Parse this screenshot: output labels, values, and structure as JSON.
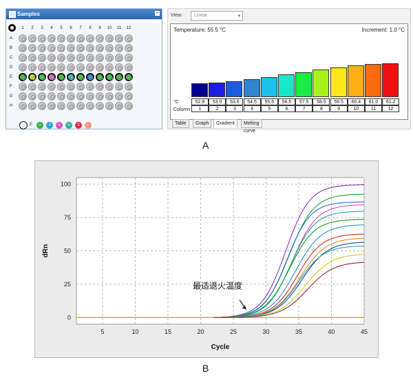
{
  "samples_panel": {
    "title": "Samples",
    "collapse_glyph": "−",
    "columns": [
      "1",
      "2",
      "3",
      "4",
      "5",
      "6",
      "7",
      "8",
      "9",
      "10",
      "11",
      "12"
    ],
    "rows": [
      "A",
      "B",
      "C",
      "D",
      "E",
      "F",
      "G",
      "H"
    ],
    "active_row": "E",
    "active_row_well_colors": [
      "#46c640",
      "#cfe02c",
      "#46c640",
      "#e86cc8",
      "#46c640",
      "#3ac3b0",
      "#46c640",
      "#3d8de0",
      "#46c640",
      "#46c640",
      "#46c640",
      "#46c640"
    ],
    "legend": {
      "label": "E",
      "dots": [
        {
          "glyph": "U",
          "color": "#2bb24c"
        },
        {
          "glyph": "S",
          "color": "#1ea7e1"
        },
        {
          "glyph": "S",
          "color": "#d94fc0"
        },
        {
          "glyph": "N",
          "color": "#2fae9f"
        },
        {
          "glyph": "S",
          "color": "#e02a43"
        },
        {
          "glyph": "-",
          "color": "#f29a7b"
        }
      ]
    }
  },
  "gradient_panel": {
    "view_label": "View:",
    "view_value": "Linear",
    "temperature_text": "Temperature: 55.5 °C",
    "increment_text": "Increment: 1.0 °C",
    "row_label_temp": "°C",
    "row_label_col": "Column",
    "bars": [
      {
        "column": "1",
        "temp": "52.8",
        "value": 52.8,
        "color": "#00008f"
      },
      {
        "column": "2",
        "temp": "53.0",
        "value": 53.0,
        "color": "#1a1ee0"
      },
      {
        "column": "3",
        "temp": "53.6",
        "value": 53.6,
        "color": "#1e5ae8"
      },
      {
        "column": "4",
        "temp": "54.5",
        "value": 54.5,
        "color": "#2f84cc"
      },
      {
        "column": "5",
        "temp": "55.5",
        "value": 55.5,
        "color": "#1cc2ec"
      },
      {
        "column": "6",
        "temp": "56.5",
        "value": 56.5,
        "color": "#17e7c9"
      },
      {
        "column": "7",
        "temp": "57.5",
        "value": 57.5,
        "color": "#19ee45"
      },
      {
        "column": "8",
        "temp": "58.5",
        "value": 58.5,
        "color": "#a6f21a"
      },
      {
        "column": "9",
        "temp": "59.5",
        "value": 59.5,
        "color": "#ffe617"
      },
      {
        "column": "10",
        "temp": "60.4",
        "value": 60.4,
        "color": "#ffae13"
      },
      {
        "column": "11",
        "temp": "61.0",
        "value": 61.0,
        "color": "#ff6a0f"
      },
      {
        "column": "12",
        "temp": "61.2",
        "value": 61.2,
        "color": "#f01010"
      }
    ],
    "tabs": [
      "Table",
      "Graph",
      "Gradient",
      "Melting curve"
    ],
    "active_tab": "Gradient"
  },
  "captions": {
    "a": "A",
    "b": "B"
  },
  "chart_data": {
    "type": "line",
    "xlabel": "Cycle",
    "ylabel": "dRn",
    "xlim": [
      1,
      45
    ],
    "ylim": [
      -5,
      105
    ],
    "x_ticks": [
      5,
      10,
      15,
      20,
      25,
      30,
      35,
      40,
      45
    ],
    "y_ticks": [
      0,
      25,
      50,
      75,
      100
    ],
    "grid": true,
    "annotation": {
      "text": "最适退火温度",
      "arrow_to_x": 27.0,
      "arrow_to_y": 6
    },
    "series": [
      {
        "color": "#8b2fc9",
        "max": 100,
        "mid": 33.0,
        "k": 0.34
      },
      {
        "color": "#1a9e3a",
        "max": 93,
        "mid": 33.5,
        "k": 0.33
      },
      {
        "color": "#2d6fd1",
        "max": 87,
        "mid": 33.2,
        "k": 0.35
      },
      {
        "color": "#e04ac0",
        "max": 85,
        "mid": 34.0,
        "k": 0.33
      },
      {
        "color": "#13a8a8",
        "max": 80,
        "mid": 33.8,
        "k": 0.34
      },
      {
        "color": "#1a9e1a",
        "max": 74,
        "mid": 33.6,
        "k": 0.33
      },
      {
        "color": "#2d8fd1",
        "max": 70,
        "mid": 34.5,
        "k": 0.32
      },
      {
        "color": "#d02f2f",
        "max": 63,
        "mid": 34.8,
        "k": 0.33
      },
      {
        "color": "#e08c16",
        "max": 60,
        "mid": 35.2,
        "k": 0.32
      },
      {
        "color": "#1f3fa8",
        "max": 57,
        "mid": 35.5,
        "k": 0.32
      },
      {
        "color": "#2ea2a2",
        "max": 54,
        "mid": 35.0,
        "k": 0.33
      },
      {
        "color": "#d2c91a",
        "max": 48,
        "mid": 36.0,
        "k": 0.31
      },
      {
        "color": "#8a2a2a",
        "max": 42,
        "mid": 36.3,
        "k": 0.31
      }
    ]
  }
}
